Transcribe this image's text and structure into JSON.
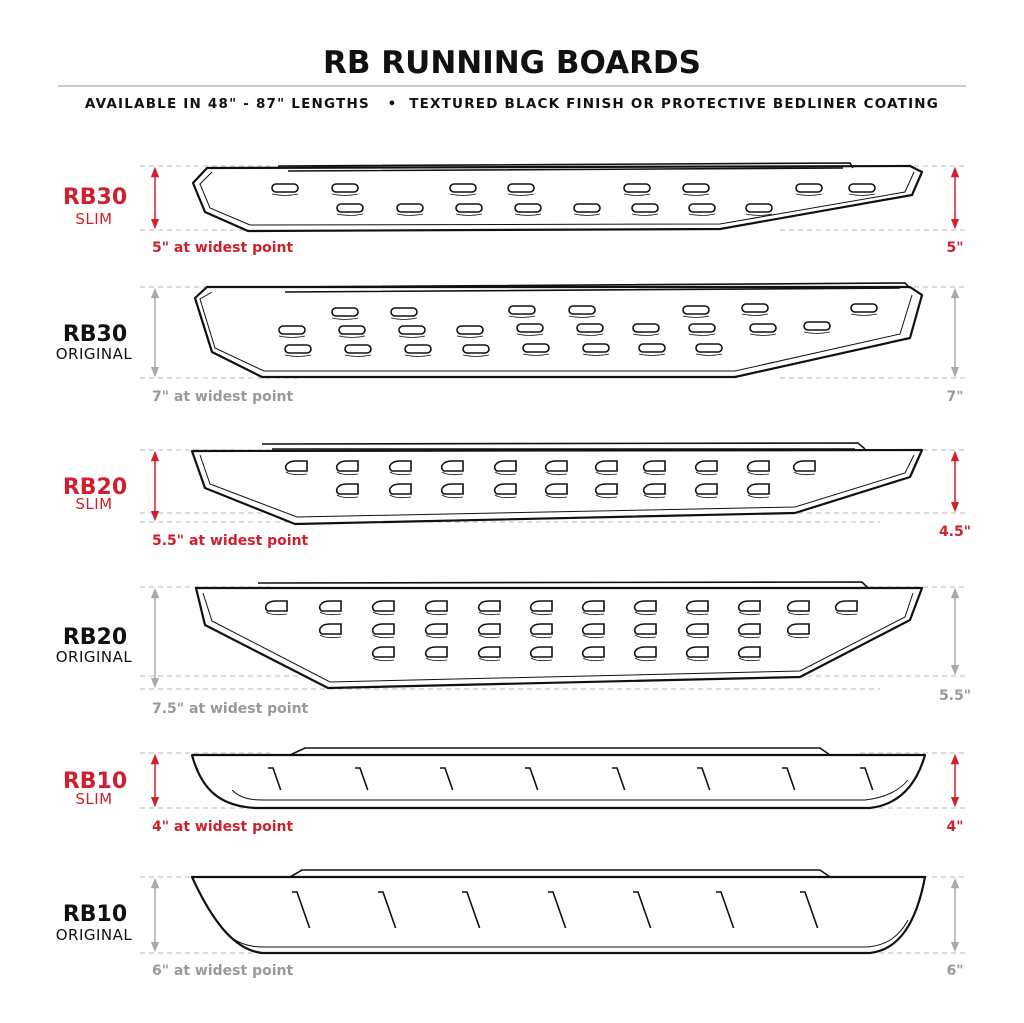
{
  "header": {
    "title": "RB RUNNING BOARDS",
    "subtitle": "AVAILABLE IN 48\" - 87\" LENGTHS   •  TEXTURED BLACK FINISH OR PROTECTIVE BEDLINER COATING"
  },
  "colors": {
    "slim": "#d0202e",
    "original_model": "#111111",
    "original_note": "#999999",
    "board_outline": "#111111"
  },
  "boards": [
    {
      "model": "RB30",
      "variant": "SLIM",
      "widest": "5\" at widest point",
      "side_height": "5\"",
      "style": "slim"
    },
    {
      "model": "RB30",
      "variant": "ORIGINAL",
      "widest": "7\" at widest point",
      "side_height": "7\"",
      "style": "original"
    },
    {
      "model": "RB20",
      "variant": "SLIM",
      "widest": "5.5\" at widest point",
      "side_height": "4.5\"",
      "style": "slim"
    },
    {
      "model": "RB20",
      "variant": "ORIGINAL",
      "widest": "7.5\" at widest point",
      "side_height": "5.5\"",
      "style": "original"
    },
    {
      "model": "RB10",
      "variant": "SLIM",
      "widest": "4\" at widest point",
      "side_height": "4\"",
      "style": "slim"
    },
    {
      "model": "RB10",
      "variant": "ORIGINAL",
      "widest": "6\" at widest point",
      "side_height": "6\"",
      "style": "original"
    }
  ]
}
